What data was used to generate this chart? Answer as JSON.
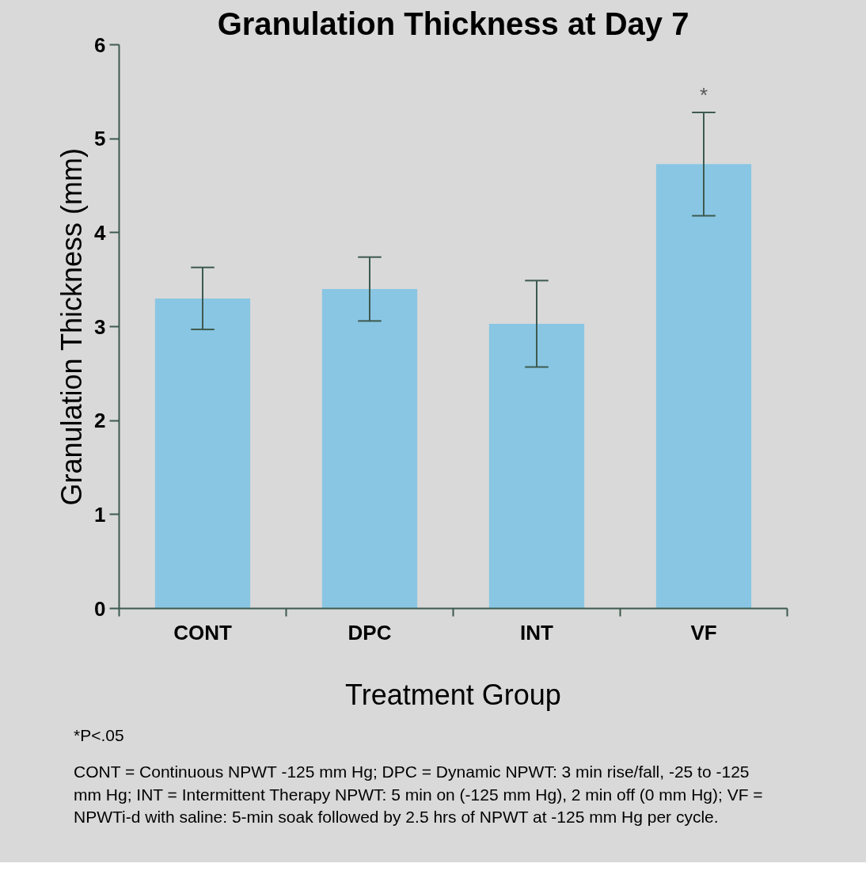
{
  "chart_data": {
    "type": "bar",
    "title": "Granulation Thickness at Day 7",
    "xlabel": "Treatment Group",
    "ylabel": "Granulation Thickness (mm)",
    "categories": [
      "CONT",
      "DPC",
      "INT",
      "VF"
    ],
    "values": [
      3.3,
      3.4,
      3.03,
      4.73
    ],
    "errors": [
      0.33,
      0.34,
      0.46,
      0.55
    ],
    "color": "#89c6e3",
    "ylim": [
      0,
      6
    ],
    "yticks": [
      0,
      1,
      2,
      3,
      4,
      5,
      6
    ],
    "grid": false,
    "annotations": [
      "*",
      "*P<.05",
      "CONT = Continuous NPWT -125 mm Hg; DPC = Dynamic NPWT: 3 min rise/fall, -25 to -125 mm Hg; INT = Intermittent Therapy NPWT: 5 min on (-125 mm Hg), 2 min off (0 mm Hg); VF = NPWTi-d with saline: 5-min soak followed by 2.5 hrs of NPWT at -125 mm Hg per cycle."
    ]
  }
}
